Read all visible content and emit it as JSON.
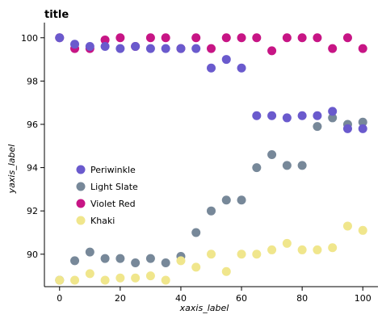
{
  "chart_data": {
    "type": "scatter",
    "title": "title",
    "xlabel": "xaxis_label",
    "ylabel": "yaxis_label",
    "xlim": [
      -5,
      105
    ],
    "ylim": [
      88.5,
      100.7
    ],
    "x_ticks": [
      0,
      20,
      40,
      60,
      80,
      100
    ],
    "y_ticks": [
      90,
      92,
      94,
      96,
      98,
      100
    ],
    "grid": false,
    "legend_position": "left",
    "x": [
      0,
      5,
      10,
      15,
      20,
      25,
      30,
      35,
      40,
      45,
      50,
      55,
      60,
      65,
      70,
      75,
      80,
      85,
      90,
      95,
      100
    ],
    "series": [
      {
        "name": "Periwinkle",
        "color": "#6a5acd",
        "values": [
          100.0,
          99.7,
          99.6,
          99.6,
          99.5,
          99.6,
          99.5,
          99.5,
          99.5,
          99.5,
          98.6,
          99.0,
          98.6,
          96.4,
          96.4,
          96.3,
          96.4,
          96.4,
          96.6,
          95.8,
          95.8
        ]
      },
      {
        "name": "Light Slate",
        "color": "#778899",
        "values": [
          88.8,
          89.7,
          90.1,
          89.8,
          89.8,
          89.6,
          89.8,
          89.6,
          89.9,
          91.0,
          92.0,
          92.5,
          92.5,
          94.0,
          94.6,
          94.1,
          94.1,
          95.9,
          96.3,
          96.0,
          96.1
        ]
      },
      {
        "name": "Violet Red",
        "color": "#c71585",
        "values": [
          100.0,
          99.5,
          99.5,
          99.9,
          100.0,
          99.6,
          100.0,
          100.0,
          99.5,
          100.0,
          99.5,
          100.0,
          100.0,
          100.0,
          99.4,
          100.0,
          100.0,
          100.0,
          99.5,
          100.0,
          99.5
        ]
      },
      {
        "name": "Khaki",
        "color": "#f0e68c",
        "values": [
          88.8,
          88.8,
          89.1,
          88.8,
          88.9,
          88.9,
          89.0,
          88.8,
          89.7,
          89.4,
          90.0,
          89.2,
          90.0,
          90.0,
          90.2,
          90.5,
          90.2,
          90.2,
          90.3,
          91.3,
          91.1
        ]
      }
    ]
  }
}
